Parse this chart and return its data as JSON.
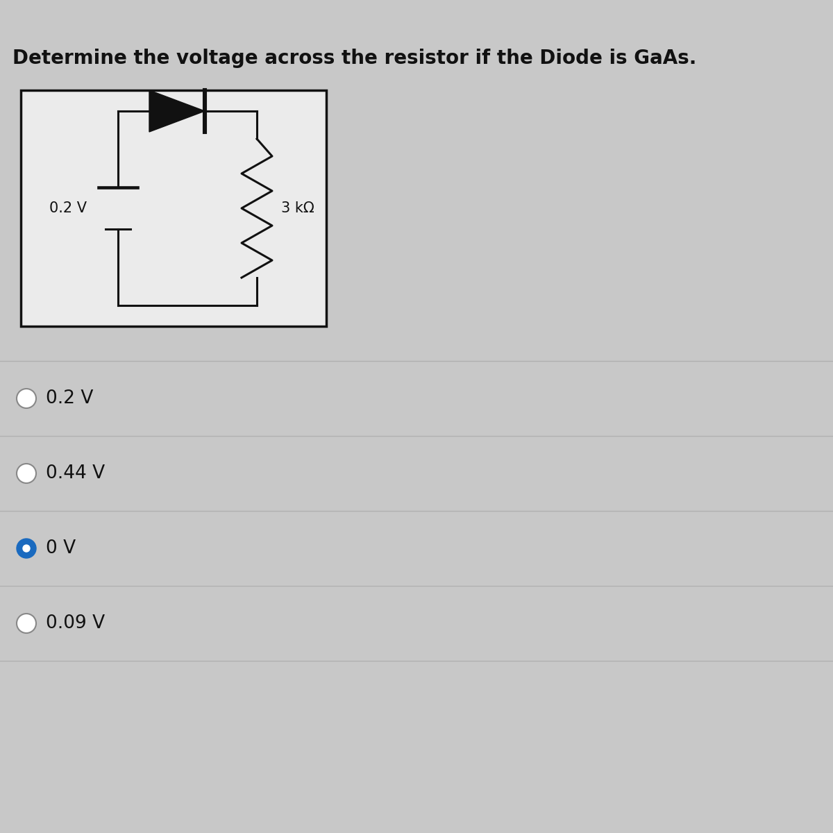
{
  "title": "Determine the voltage across the resistor if the Diode is GaAs.",
  "title_fontsize": 20,
  "bg_color": "#c8c8c8",
  "circuit_box_color": "#ebebeb",
  "circuit_box_border": "#111111",
  "circuit_line_color": "#111111",
  "voltage_label": "0.2 V",
  "resistor_label": "3 kΩ",
  "options": [
    "0.2 V",
    "0.44 V",
    "0 V",
    "0.09 V"
  ],
  "selected_option": 2,
  "option_font_size": 19,
  "selected_color": "#1a6abf",
  "unselected_color": "#888888",
  "separator_color": "#b0b0b0"
}
